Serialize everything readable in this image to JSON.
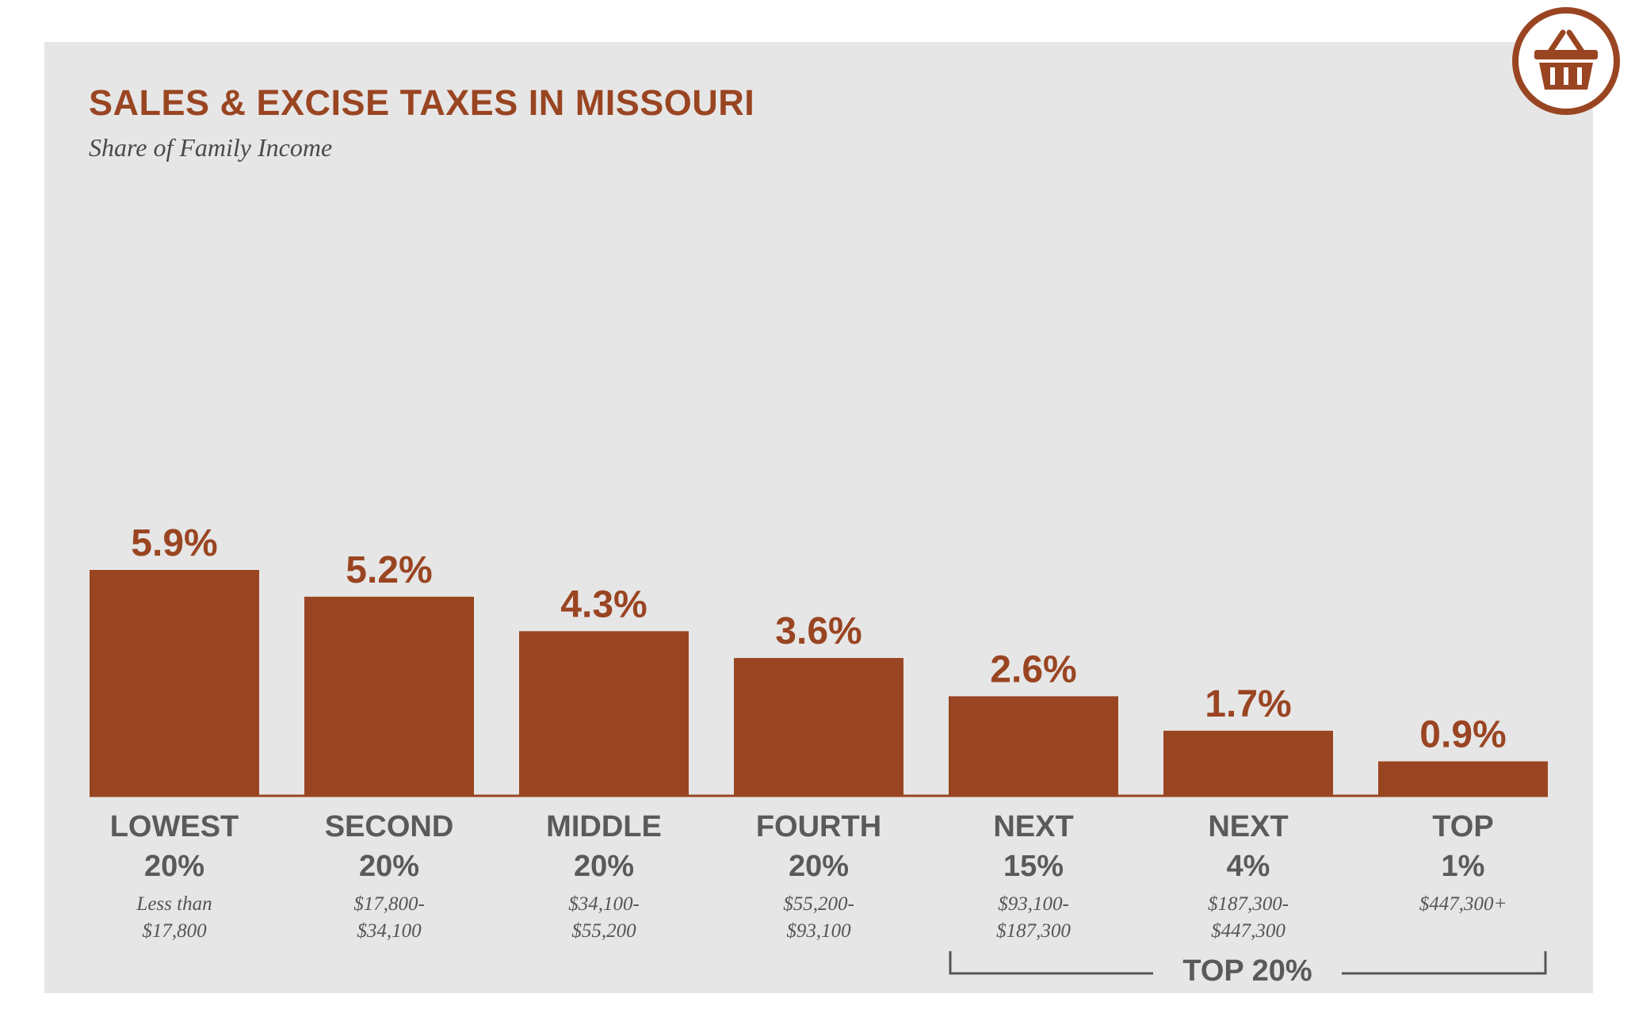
{
  "chart_data": {
    "type": "bar",
    "title": "SALES & EXCISE TAXES IN MISSOURI",
    "subtitle": "Share of Family Income",
    "categories": [
      {
        "name": "LOWEST",
        "pct": "20%",
        "range": [
          "Less than",
          "$17,800"
        ]
      },
      {
        "name": "SECOND",
        "pct": "20%",
        "range": [
          "$17,800-",
          "$34,100"
        ]
      },
      {
        "name": "MIDDLE",
        "pct": "20%",
        "range": [
          "$34,100-",
          "$55,200"
        ]
      },
      {
        "name": "FOURTH",
        "pct": "20%",
        "range": [
          "$55,200-",
          "$93,100"
        ]
      },
      {
        "name": "NEXT",
        "pct": "15%",
        "range": [
          "$93,100-",
          "$187,300"
        ]
      },
      {
        "name": "NEXT",
        "pct": "4%",
        "range": [
          "$187,300-",
          "$447,300"
        ]
      },
      {
        "name": "TOP",
        "pct": "1%",
        "range": [
          "$447,300+"
        ]
      }
    ],
    "values": [
      5.9,
      5.2,
      4.3,
      3.6,
      2.6,
      1.7,
      0.9
    ],
    "value_labels": [
      "5.9%",
      "5.2%",
      "4.3%",
      "3.6%",
      "2.6%",
      "1.7%",
      "0.9%"
    ],
    "ylim": [
      0,
      5.9
    ],
    "grid": false,
    "bar_color": "#9a4522",
    "group_bracket": {
      "label": "TOP 20%",
      "spans_categories": [
        4,
        5,
        6
      ]
    }
  },
  "colors": {
    "accent": "#9a4522",
    "panel": "#e6e6e6",
    "label_text": "#5a5a5a"
  },
  "badge": {
    "icon": "shopping-basket-icon"
  }
}
